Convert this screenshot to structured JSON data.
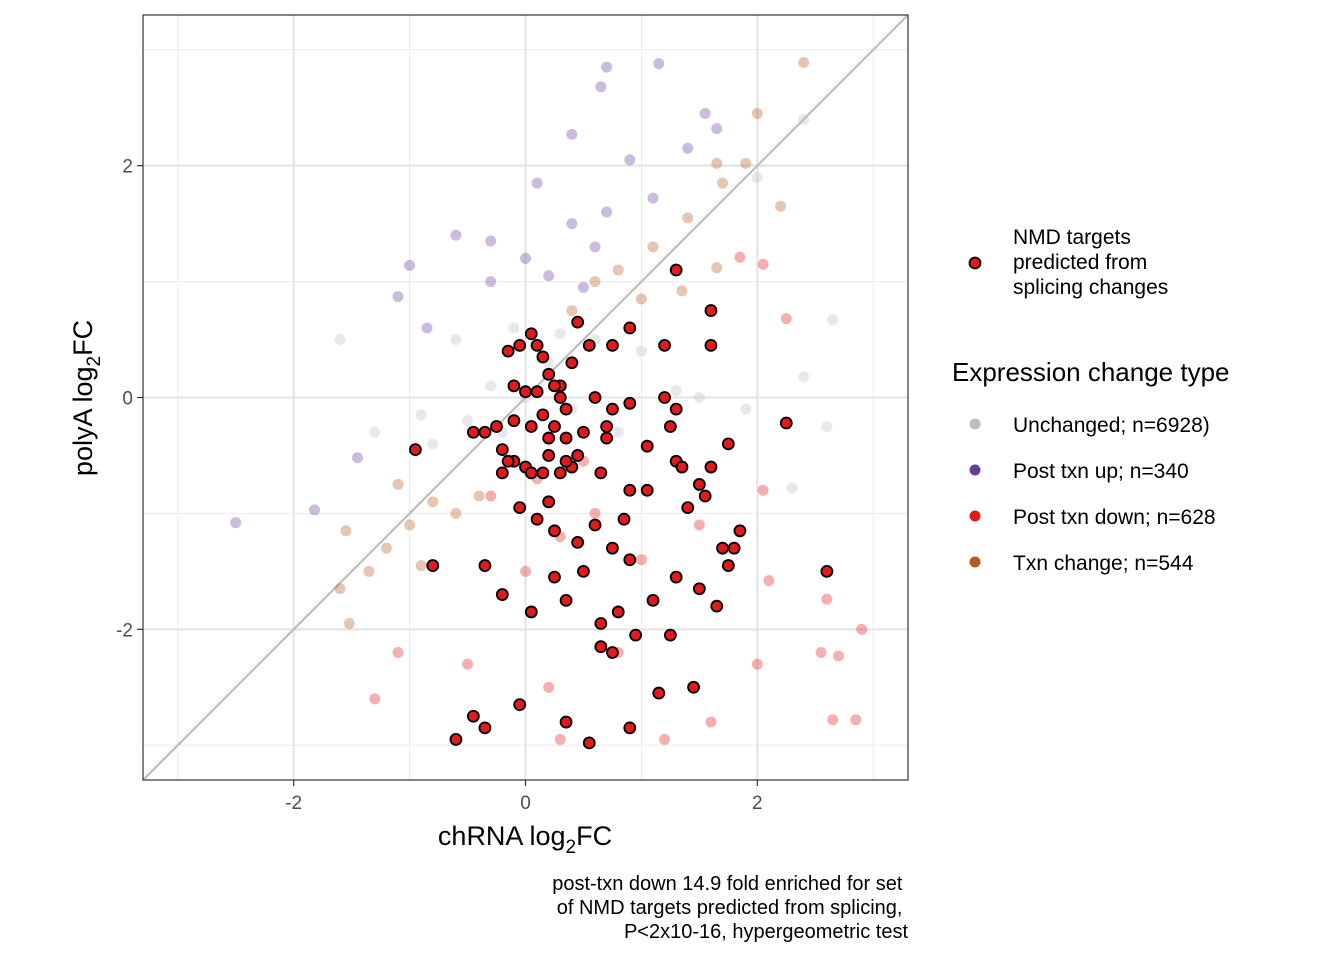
{
  "chart_data": {
    "type": "scatter",
    "x_label": "chRNA log",
    "x_label_sub": "2",
    "x_label_suffix": "FC",
    "y_label": "polyA log",
    "y_label_sub": "2",
    "y_label_suffix": "FC",
    "xlim": [
      -3.3,
      3.3
    ],
    "ylim": [
      -3.3,
      3.3
    ],
    "x_ticks": [
      -2,
      0,
      2
    ],
    "y_ticks": [
      -2,
      0,
      2
    ],
    "x_tick_labels": [
      "-2",
      "0",
      "2"
    ],
    "y_tick_labels": [
      "-2",
      "0",
      "2"
    ],
    "grid": true,
    "reference_line": "y = x",
    "legend_position": "right",
    "highlight_legend": {
      "label_lines": [
        "NMD targets",
        "predicted from",
        "splicing changes"
      ]
    },
    "legend_title": "Expression change type",
    "series": [
      {
        "name": "Unchanged; n=6928)",
        "color": "#bdbdbd",
        "count": 6928,
        "points": [
          [
            0.0,
            0.0
          ],
          [
            -0.3,
            0.1
          ],
          [
            0.2,
            0.3
          ],
          [
            -0.5,
            -0.2
          ],
          [
            0.4,
            -0.1
          ],
          [
            -0.1,
            0.6
          ],
          [
            0.6,
            0.5
          ],
          [
            -0.8,
            -0.4
          ],
          [
            1.0,
            0.4
          ],
          [
            -1.3,
            -0.3
          ],
          [
            1.5,
            0.0
          ],
          [
            -0.6,
            0.5
          ],
          [
            0.8,
            -0.3
          ],
          [
            2.4,
            2.4
          ],
          [
            2.0,
            1.9
          ],
          [
            -1.6,
            0.5
          ],
          [
            1.9,
            -0.1
          ],
          [
            2.65,
            0.67
          ],
          [
            2.6,
            -0.25
          ],
          [
            2.3,
            -0.78
          ],
          [
            2.4,
            0.18
          ],
          [
            1.3,
            0.06
          ],
          [
            -0.9,
            -0.15
          ],
          [
            0.3,
            0.55
          ],
          [
            -0.2,
            -0.3
          ]
        ]
      },
      {
        "name": "Post txn up; n=340",
        "color": "#6a3d9a",
        "count": 340,
        "points": [
          [
            -2.5,
            -1.08
          ],
          [
            -1.82,
            -0.97
          ],
          [
            -1.1,
            0.87
          ],
          [
            -1.0,
            1.14
          ],
          [
            -0.6,
            1.4
          ],
          [
            -0.3,
            1.35
          ],
          [
            0.0,
            1.2
          ],
          [
            0.1,
            1.85
          ],
          [
            0.4,
            1.5
          ],
          [
            0.6,
            1.3
          ],
          [
            0.65,
            2.68
          ],
          [
            0.7,
            1.6
          ],
          [
            1.15,
            2.88
          ],
          [
            0.9,
            2.05
          ],
          [
            0.4,
            2.27
          ],
          [
            1.4,
            2.15
          ],
          [
            1.55,
            2.45
          ],
          [
            1.65,
            2.32
          ],
          [
            0.7,
            2.85
          ],
          [
            -0.3,
            1.0
          ],
          [
            0.2,
            1.05
          ],
          [
            1.1,
            1.72
          ],
          [
            -1.45,
            -0.52
          ],
          [
            -0.85,
            0.6
          ],
          [
            0.5,
            0.95
          ]
        ]
      },
      {
        "name": "Post txn down; n=628",
        "color": "#e31a1c",
        "count": 628,
        "points": [
          [
            -0.6,
            -2.95
          ],
          [
            -0.5,
            -2.3
          ],
          [
            0.0,
            -1.5
          ],
          [
            0.3,
            -1.2
          ],
          [
            0.6,
            -1.0
          ],
          [
            1.0,
            -1.4
          ],
          [
            1.5,
            -1.1
          ],
          [
            0.2,
            -2.5
          ],
          [
            0.8,
            -2.2
          ],
          [
            1.6,
            -2.8
          ],
          [
            2.0,
            -2.3
          ],
          [
            2.9,
            -2.0
          ],
          [
            2.85,
            -2.78
          ],
          [
            2.65,
            -2.78
          ],
          [
            2.7,
            -2.23
          ],
          [
            2.55,
            -2.2
          ],
          [
            2.6,
            -1.74
          ],
          [
            2.25,
            0.68
          ],
          [
            2.1,
            -1.58
          ],
          [
            2.05,
            -0.8
          ],
          [
            1.85,
            1.21
          ],
          [
            2.05,
            1.15
          ],
          [
            -1.3,
            -2.6
          ],
          [
            -1.1,
            -2.2
          ],
          [
            -0.3,
            -0.85
          ],
          [
            0.1,
            -0.7
          ],
          [
            0.5,
            -0.55
          ],
          [
            1.2,
            -2.95
          ],
          [
            0.3,
            -2.95
          ]
        ]
      },
      {
        "name": "Txn change; n=544",
        "color": "#b25c21",
        "count": 544,
        "points": [
          [
            -1.6,
            -1.65
          ],
          [
            -1.52,
            -1.95
          ],
          [
            -1.35,
            -1.5
          ],
          [
            -1.2,
            -1.3
          ],
          [
            -1.0,
            -1.1
          ],
          [
            -0.8,
            -0.9
          ],
          [
            -0.6,
            -1.0
          ],
          [
            -0.4,
            -0.85
          ],
          [
            -1.1,
            -0.75
          ],
          [
            0.6,
            1.0
          ],
          [
            0.8,
            1.1
          ],
          [
            1.1,
            1.3
          ],
          [
            1.4,
            1.55
          ],
          [
            1.7,
            1.85
          ],
          [
            1.9,
            2.02
          ],
          [
            2.0,
            2.45
          ],
          [
            2.4,
            2.89
          ],
          [
            2.2,
            1.65
          ],
          [
            1.65,
            2.02
          ],
          [
            1.65,
            1.12
          ],
          [
            1.35,
            0.92
          ],
          [
            -1.55,
            -1.15
          ],
          [
            -0.9,
            -1.45
          ],
          [
            0.4,
            0.75
          ],
          [
            1.0,
            0.85
          ]
        ]
      }
    ],
    "highlighted_points": [
      [
        -0.6,
        -2.95
      ],
      [
        -0.45,
        -2.75
      ],
      [
        -0.35,
        -2.85
      ],
      [
        -0.05,
        -2.65
      ],
      [
        0.35,
        -2.8
      ],
      [
        0.55,
        -2.98
      ],
      [
        0.9,
        -2.85
      ],
      [
        1.15,
        -2.55
      ],
      [
        1.45,
        -2.5
      ],
      [
        0.65,
        -2.15
      ],
      [
        0.75,
        -2.2
      ],
      [
        1.25,
        -2.05
      ],
      [
        0.95,
        -2.05
      ],
      [
        0.5,
        -1.5
      ],
      [
        0.8,
        -1.85
      ],
      [
        1.1,
        -1.75
      ],
      [
        1.5,
        -1.65
      ],
      [
        1.65,
        -1.8
      ],
      [
        1.75,
        -1.45
      ],
      [
        2.6,
        -1.5
      ],
      [
        1.7,
        -1.3
      ],
      [
        1.8,
        -1.3
      ],
      [
        0.25,
        -1.55
      ],
      [
        -0.2,
        -1.7
      ],
      [
        -0.35,
        -1.45
      ],
      [
        0.05,
        -1.85
      ],
      [
        -0.8,
        -1.45
      ],
      [
        0.35,
        -1.75
      ],
      [
        0.65,
        -1.95
      ],
      [
        0.9,
        -1.4
      ],
      [
        1.3,
        -1.55
      ],
      [
        1.85,
        -1.15
      ],
      [
        0.45,
        -1.25
      ],
      [
        0.6,
        -1.1
      ],
      [
        -0.05,
        -0.95
      ],
      [
        0.2,
        -0.9
      ],
      [
        0.15,
        -0.65
      ],
      [
        0.4,
        -0.6
      ],
      [
        0.65,
        -0.65
      ],
      [
        0.85,
        -1.05
      ],
      [
        1.05,
        -0.8
      ],
      [
        1.4,
        -0.95
      ],
      [
        1.5,
        -0.75
      ],
      [
        1.6,
        -0.6
      ],
      [
        1.3,
        -0.55
      ],
      [
        1.75,
        -0.4
      ],
      [
        2.25,
        -0.22
      ],
      [
        -0.95,
        -0.45
      ],
      [
        -0.45,
        -0.3
      ],
      [
        -0.35,
        -0.3
      ],
      [
        -0.25,
        -0.25
      ],
      [
        -0.2,
        -0.45
      ],
      [
        -0.1,
        -0.55
      ],
      [
        0.0,
        -0.6
      ],
      [
        0.05,
        -0.65
      ],
      [
        0.2,
        -0.5
      ],
      [
        0.35,
        -0.55
      ],
      [
        0.45,
        -0.5
      ],
      [
        0.5,
        -0.3
      ],
      [
        0.7,
        -0.25
      ],
      [
        0.9,
        -0.05
      ],
      [
        1.2,
        0.0
      ],
      [
        1.3,
        -0.1
      ],
      [
        1.25,
        -0.25
      ],
      [
        -0.15,
        0.4
      ],
      [
        -0.05,
        0.45
      ],
      [
        0.05,
        0.55
      ],
      [
        0.1,
        0.45
      ],
      [
        0.15,
        0.35
      ],
      [
        0.2,
        0.2
      ],
      [
        0.3,
        0.1
      ],
      [
        0.4,
        0.3
      ],
      [
        0.55,
        0.45
      ],
      [
        0.75,
        0.45
      ],
      [
        0.9,
        0.6
      ],
      [
        1.2,
        0.45
      ],
      [
        1.6,
        0.45
      ],
      [
        1.6,
        0.75
      ],
      [
        1.3,
        1.1
      ],
      [
        0.45,
        0.65
      ],
      [
        -0.1,
        0.1
      ],
      [
        0.0,
        0.05
      ],
      [
        0.1,
        0.05
      ],
      [
        0.25,
        0.1
      ],
      [
        0.3,
        0.0
      ],
      [
        0.35,
        -0.1
      ],
      [
        0.15,
        -0.15
      ],
      [
        0.05,
        -0.25
      ],
      [
        -0.1,
        -0.2
      ],
      [
        0.25,
        -0.25
      ],
      [
        0.35,
        -0.35
      ],
      [
        0.2,
        -0.35
      ],
      [
        0.6,
        0.0
      ],
      [
        0.75,
        -0.1
      ],
      [
        0.7,
        -0.35
      ],
      [
        1.05,
        -0.42
      ],
      [
        1.35,
        -0.6
      ],
      [
        1.55,
        -0.85
      ],
      [
        0.9,
        -0.8
      ],
      [
        0.75,
        -1.3
      ],
      [
        0.25,
        -1.15
      ],
      [
        0.1,
        -1.05
      ],
      [
        -0.2,
        -0.65
      ],
      [
        -0.15,
        -0.55
      ],
      [
        0.3,
        -0.65
      ]
    ]
  },
  "caption_lines": [
    "post-txn down 14.9 fold enriched for set",
    "of NMD targets predicted from splicing,",
    "P<2x10-16, hypergeometric test"
  ]
}
